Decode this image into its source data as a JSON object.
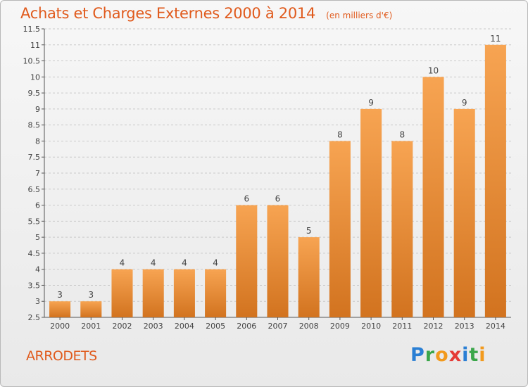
{
  "title": "Achats et Charges Externes 2000 à 2014",
  "unit": "(en milliers d'€)",
  "commune": "ARRODETS",
  "logo": {
    "text": "Proxiti",
    "letters": [
      {
        "ch": "P",
        "color": "#2a7fd4"
      },
      {
        "ch": "r",
        "color": "#3aa64a"
      },
      {
        "ch": "o",
        "color": "#f29a1d"
      },
      {
        "ch": "x",
        "color": "#e53935"
      },
      {
        "ch": "i",
        "color": "#2a7fd4"
      },
      {
        "ch": "t",
        "color": "#3aa64a"
      },
      {
        "ch": "i",
        "color": "#f29a1d"
      }
    ]
  },
  "chart_data": {
    "type": "bar",
    "categories": [
      "2000",
      "2001",
      "2002",
      "2003",
      "2004",
      "2005",
      "2006",
      "2007",
      "2008",
      "2009",
      "2010",
      "2011",
      "2012",
      "2013",
      "2014"
    ],
    "values": [
      3,
      3,
      4,
      4,
      4,
      4,
      6,
      6,
      5,
      8,
      9,
      8,
      10,
      9,
      11
    ],
    "data_labels": [
      "3",
      "3",
      "4",
      "4",
      "4",
      "4",
      "6",
      "6",
      "5",
      "8",
      "9",
      "8",
      "10",
      "9",
      "11"
    ],
    "ylim": [
      2.5,
      11.5
    ],
    "yticks": [
      2.5,
      3,
      3.5,
      4,
      4.5,
      5,
      5.5,
      6,
      6.5,
      7,
      7.5,
      8,
      8.5,
      9,
      9.5,
      10,
      10.5,
      11,
      11.5
    ],
    "ytick_labels": [
      "2.5",
      "3",
      "3.5",
      "4",
      "4.5",
      "5",
      "5.5",
      "6",
      "6.5",
      "7",
      "7.5",
      "8",
      "8.5",
      "9",
      "9.5",
      "10",
      "10.5",
      "11",
      "11.5"
    ],
    "grid": "horizontal dashed",
    "bar_color_top": "#f7a452",
    "bar_color_bottom": "#d2731f",
    "label_color": "#444444"
  }
}
